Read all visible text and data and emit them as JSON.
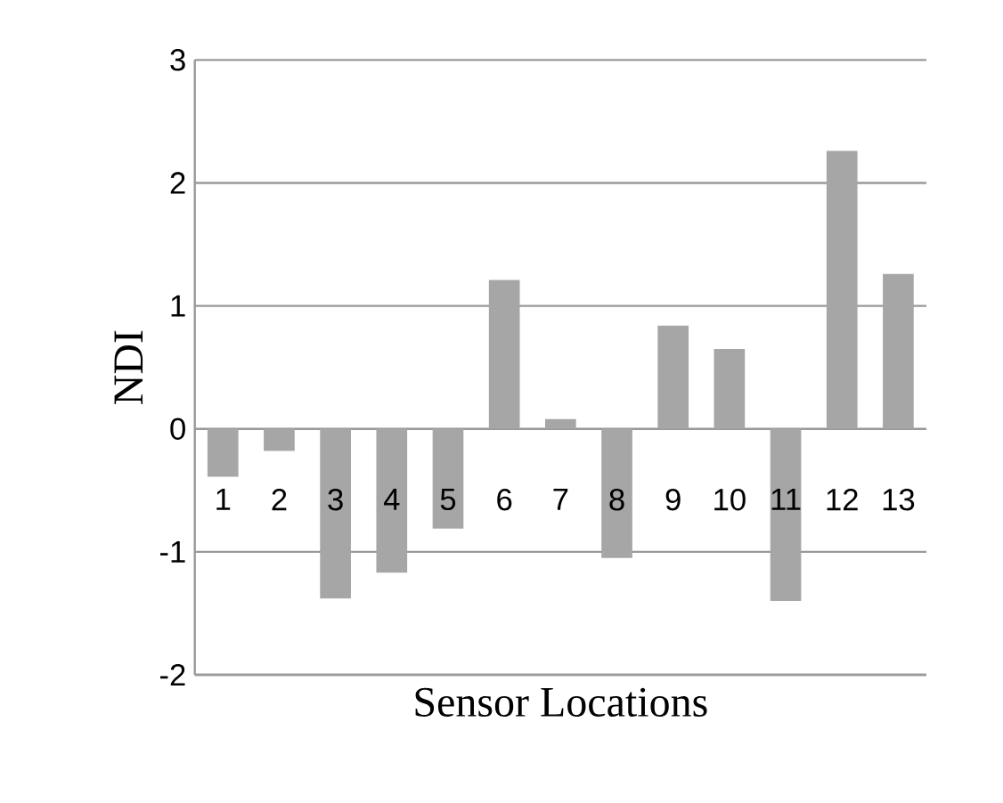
{
  "chart_data": {
    "type": "bar",
    "xlabel": "Sensor Locations",
    "ylabel": "NDI",
    "categories": [
      "1",
      "2",
      "3",
      "4",
      "5",
      "6",
      "7",
      "8",
      "9",
      "10",
      "11",
      "12",
      "13"
    ],
    "values": [
      -0.39,
      -0.18,
      -1.38,
      -1.17,
      -0.81,
      1.21,
      0.08,
      -1.05,
      0.84,
      0.65,
      -1.4,
      2.26,
      1.26
    ],
    "color": "#a6a6a6",
    "ylim": [
      -2,
      3
    ],
    "yticks": [
      -2,
      -1,
      0,
      1,
      2,
      3
    ],
    "grid": true
  }
}
